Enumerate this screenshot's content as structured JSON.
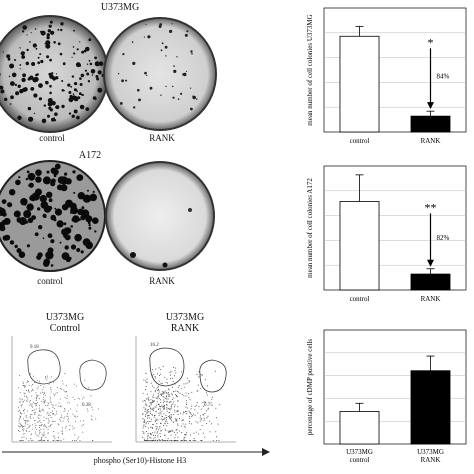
{
  "panel_a": {
    "cell_line": "U373MG",
    "dish_labels": [
      "control",
      "RANK"
    ]
  },
  "panel_b": {
    "cell_line": "A172",
    "dish_labels": [
      "control",
      "RANK"
    ]
  },
  "panel_c": {
    "flow_titles": [
      {
        "line1": "U373MG",
        "line2": "Control"
      },
      {
        "line1": "U373MG",
        "line2": "RANK"
      }
    ],
    "gate_values": [
      {
        "left": "9.18",
        "right": "0.38"
      },
      {
        "left": "16.2",
        "right": "0.75"
      }
    ],
    "xaxis_label": "phospho (Ser10)-Histone H3"
  },
  "chart_data": [
    {
      "type": "bar",
      "categories": [
        "control",
        "RANK"
      ],
      "values": [
        193,
        32
      ],
      "errors": [
        20,
        10
      ],
      "fills": [
        "#ffffff",
        "#000000"
      ],
      "ylabel": "mean number of cell colonies U373MG",
      "ylim": [
        0,
        250
      ],
      "grid": true,
      "annotation": {
        "significance": "*",
        "percent": "84%"
      }
    },
    {
      "type": "bar",
      "categories": [
        "control",
        "RANK"
      ],
      "values": [
        50,
        9
      ],
      "errors": [
        15,
        3
      ],
      "fills": [
        "#ffffff",
        "#000000"
      ],
      "ylabel": "mean number of cell colonies A172",
      "ylim": [
        0,
        70
      ],
      "grid": true,
      "annotation": {
        "significance": "**",
        "percent": "82%"
      }
    },
    {
      "type": "bar",
      "categories": [
        "U373MG control",
        "U373MG RANK"
      ],
      "cat_lines": [
        [
          "U373MG",
          "control"
        ],
        [
          "U373MG",
          "RANK"
        ]
      ],
      "values": [
        1.0,
        2.25
      ],
      "errors": [
        0.25,
        0.45
      ],
      "fills": [
        "#ffffff",
        "#000000"
      ],
      "ylabel": "percentage of cDMP positive cells",
      "ylim": [
        0,
        3.5
      ],
      "grid": true
    }
  ]
}
